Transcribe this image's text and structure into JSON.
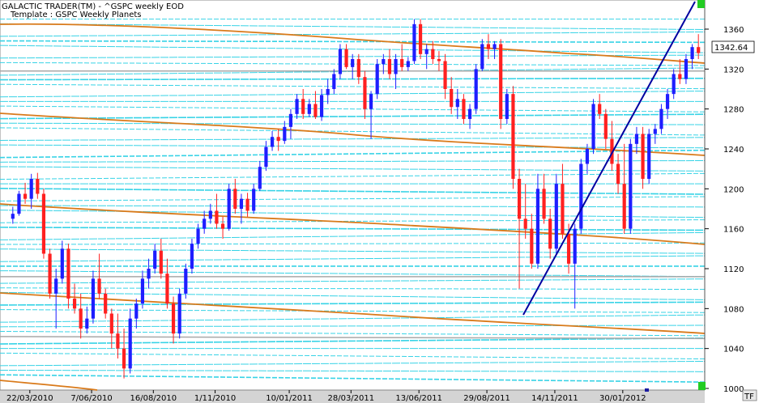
{
  "header": {
    "app_title": "GALACTIC TRADER(TM) - ^GSPC weekly EOD",
    "template": "Template : GSPC Weekly Planets"
  },
  "price_badge": "1342.64",
  "tf_button": "TF",
  "chart_data": {
    "type": "candlestick",
    "ylim": [
      1000,
      1380
    ],
    "y_ticks": [
      1000,
      1040,
      1080,
      1120,
      1160,
      1200,
      1240,
      1280,
      1320,
      1360
    ],
    "x_labels": [
      "22/03/2010",
      "7/06/2010",
      "16/08/2010",
      "1/11/2010",
      "10/01/2011",
      "28/03/2011",
      "13/06/2011",
      "29/08/2011",
      "14/11/2011",
      "30/01/2012"
    ],
    "candles": [
      [
        1170,
        1182,
        1165,
        1175
      ],
      [
        1175,
        1198,
        1173,
        1195
      ],
      [
        1195,
        1206,
        1185,
        1190
      ],
      [
        1190,
        1215,
        1180,
        1210
      ],
      [
        1210,
        1216,
        1190,
        1195
      ],
      [
        1195,
        1200,
        1130,
        1135
      ],
      [
        1135,
        1140,
        1090,
        1095
      ],
      [
        1095,
        1120,
        1060,
        1110
      ],
      [
        1110,
        1148,
        1105,
        1140
      ],
      [
        1140,
        1145,
        1080,
        1090
      ],
      [
        1090,
        1105,
        1075,
        1080
      ],
      [
        1080,
        1095,
        1050,
        1060
      ],
      [
        1060,
        1082,
        1055,
        1070
      ],
      [
        1070,
        1118,
        1065,
        1110
      ],
      [
        1110,
        1135,
        1090,
        1095
      ],
      [
        1095,
        1100,
        1070,
        1075
      ],
      [
        1075,
        1080,
        1040,
        1055
      ],
      [
        1055,
        1075,
        1030,
        1040
      ],
      [
        1040,
        1060,
        1010,
        1020
      ],
      [
        1020,
        1080,
        1015,
        1070
      ],
      [
        1070,
        1090,
        1060,
        1085
      ],
      [
        1085,
        1118,
        1080,
        1110
      ],
      [
        1110,
        1130,
        1100,
        1120
      ],
      [
        1120,
        1145,
        1115,
        1138
      ],
      [
        1138,
        1150,
        1110,
        1115
      ],
      [
        1115,
        1130,
        1080,
        1085
      ],
      [
        1085,
        1092,
        1045,
        1055
      ],
      [
        1055,
        1100,
        1050,
        1095
      ],
      [
        1095,
        1125,
        1090,
        1120
      ],
      [
        1120,
        1150,
        1115,
        1145
      ],
      [
        1145,
        1165,
        1140,
        1160
      ],
      [
        1160,
        1178,
        1155,
        1170
      ],
      [
        1170,
        1185,
        1165,
        1178
      ],
      [
        1178,
        1195,
        1160,
        1165
      ],
      [
        1165,
        1172,
        1150,
        1160
      ],
      [
        1160,
        1205,
        1158,
        1200
      ],
      [
        1200,
        1210,
        1175,
        1180
      ],
      [
        1180,
        1195,
        1165,
        1190
      ],
      [
        1190,
        1196,
        1172,
        1178
      ],
      [
        1178,
        1205,
        1175,
        1200
      ],
      [
        1200,
        1228,
        1198,
        1222
      ],
      [
        1222,
        1248,
        1218,
        1242
      ],
      [
        1242,
        1258,
        1238,
        1252
      ],
      [
        1252,
        1260,
        1238,
        1248
      ],
      [
        1248,
        1268,
        1245,
        1262
      ],
      [
        1262,
        1280,
        1250,
        1275
      ],
      [
        1275,
        1295,
        1270,
        1290
      ],
      [
        1290,
        1300,
        1270,
        1275
      ],
      [
        1275,
        1290,
        1272,
        1285
      ],
      [
        1285,
        1298,
        1270,
        1272
      ],
      [
        1272,
        1300,
        1268,
        1294
      ],
      [
        1294,
        1310,
        1285,
        1300
      ],
      [
        1300,
        1320,
        1295,
        1315
      ],
      [
        1315,
        1345,
        1310,
        1340
      ],
      [
        1340,
        1345,
        1320,
        1322
      ],
      [
        1322,
        1335,
        1310,
        1330
      ],
      [
        1330,
        1335,
        1305,
        1312
      ],
      [
        1312,
        1318,
        1270,
        1280
      ],
      [
        1280,
        1298,
        1250,
        1295
      ],
      [
        1295,
        1330,
        1290,
        1325
      ],
      [
        1325,
        1335,
        1315,
        1330
      ],
      [
        1330,
        1340,
        1310,
        1315
      ],
      [
        1315,
        1335,
        1300,
        1330
      ],
      [
        1330,
        1345,
        1318,
        1322
      ],
      [
        1322,
        1332,
        1318,
        1328
      ],
      [
        1328,
        1370,
        1325,
        1365
      ],
      [
        1365,
        1370,
        1330,
        1335
      ],
      [
        1335,
        1345,
        1320,
        1340
      ],
      [
        1340,
        1348,
        1325,
        1330
      ],
      [
        1330,
        1338,
        1318,
        1328
      ],
      [
        1328,
        1335,
        1290,
        1300
      ],
      [
        1300,
        1312,
        1275,
        1282
      ],
      [
        1282,
        1300,
        1270,
        1290
      ],
      [
        1290,
        1295,
        1265,
        1270
      ],
      [
        1270,
        1285,
        1260,
        1280
      ],
      [
        1280,
        1325,
        1275,
        1320
      ],
      [
        1320,
        1350,
        1318,
        1345
      ],
      [
        1345,
        1355,
        1330,
        1340
      ],
      [
        1340,
        1348,
        1330,
        1345
      ],
      [
        1345,
        1350,
        1260,
        1270
      ],
      [
        1270,
        1300,
        1265,
        1295
      ],
      [
        1295,
        1303,
        1200,
        1210
      ],
      [
        1210,
        1220,
        1100,
        1170
      ],
      [
        1170,
        1205,
        1150,
        1160
      ],
      [
        1160,
        1175,
        1120,
        1125
      ],
      [
        1125,
        1215,
        1120,
        1200
      ],
      [
        1200,
        1215,
        1165,
        1170
      ],
      [
        1170,
        1180,
        1130,
        1140
      ],
      [
        1140,
        1215,
        1135,
        1205
      ],
      [
        1205,
        1225,
        1150,
        1155
      ],
      [
        1155,
        1165,
        1115,
        1125
      ],
      [
        1125,
        1165,
        1080,
        1160
      ],
      [
        1160,
        1230,
        1155,
        1225
      ],
      [
        1225,
        1245,
        1215,
        1240
      ],
      [
        1240,
        1290,
        1235,
        1285
      ],
      [
        1285,
        1295,
        1270,
        1275
      ],
      [
        1275,
        1280,
        1240,
        1250
      ],
      [
        1250,
        1268,
        1218,
        1225
      ],
      [
        1225,
        1235,
        1195,
        1205
      ],
      [
        1205,
        1245,
        1155,
        1160
      ],
      [
        1160,
        1250,
        1155,
        1245
      ],
      [
        1245,
        1262,
        1235,
        1255
      ],
      [
        1255,
        1262,
        1200,
        1210
      ],
      [
        1210,
        1260,
        1205,
        1255
      ],
      [
        1255,
        1265,
        1245,
        1260
      ],
      [
        1260,
        1285,
        1255,
        1280
      ],
      [
        1280,
        1300,
        1270,
        1295
      ],
      [
        1295,
        1320,
        1290,
        1315
      ],
      [
        1315,
        1330,
        1305,
        1310
      ],
      [
        1310,
        1335,
        1305,
        1330
      ],
      [
        1330,
        1345,
        1320,
        1342
      ],
      [
        1342,
        1355,
        1330,
        1336
      ]
    ]
  }
}
